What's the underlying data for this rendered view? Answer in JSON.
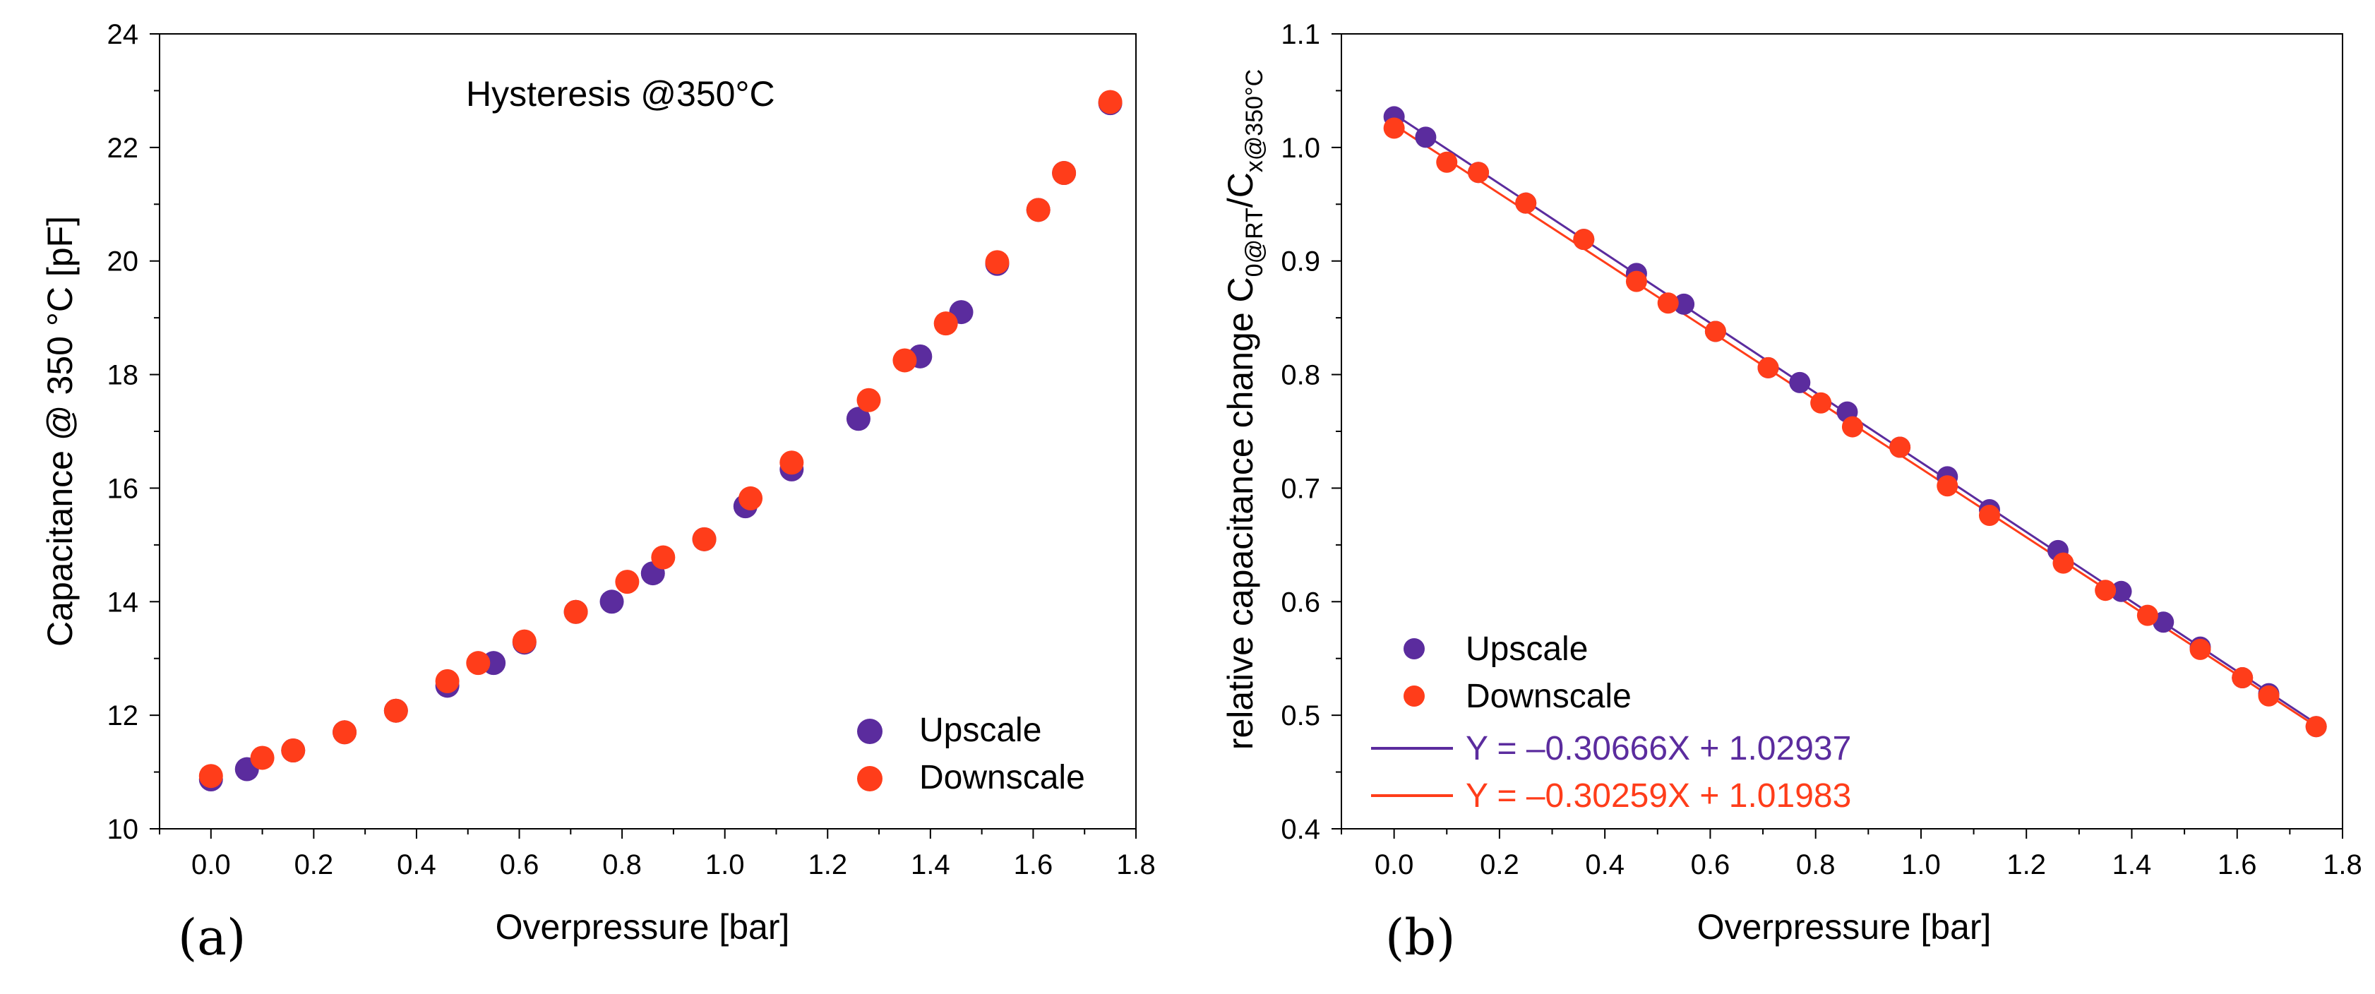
{
  "chart_data": [
    {
      "type": "scatter",
      "panel_label": "(a)",
      "title": "Hysteresis @350°C",
      "xlabel": "Overpressure [bar]",
      "ylabel": "Capacitance @ 350 °C [pF]",
      "xlim": [
        -0.1,
        1.8
      ],
      "ylim": [
        10,
        24
      ],
      "xticks": [
        "0.0",
        "0.2",
        "0.4",
        "0.6",
        "0.8",
        "1.0",
        "1.2",
        "1.4",
        "1.6",
        "1.8"
      ],
      "yticks": [
        "10",
        "12",
        "14",
        "16",
        "18",
        "20",
        "22",
        "24"
      ],
      "legend_position": "bottom-right",
      "series": [
        {
          "name": "Upscale",
          "color": "#5B2C9E",
          "x": [
            0.0,
            0.07,
            0.16,
            0.26,
            0.36,
            0.46,
            0.55,
            0.61,
            0.71,
            0.78,
            0.86,
            0.96,
            1.04,
            1.13,
            1.26,
            1.38,
            1.46,
            1.53,
            1.61,
            1.66,
            1.75
          ],
          "y": [
            10.87,
            11.05,
            11.38,
            11.7,
            12.08,
            12.52,
            12.92,
            13.28,
            13.82,
            14.0,
            14.5,
            15.1,
            15.68,
            16.33,
            17.22,
            18.32,
            19.1,
            19.95,
            20.9,
            21.55,
            22.78
          ]
        },
        {
          "name": "Downscale",
          "color": "#FF3D1A",
          "x": [
            0.0,
            0.1,
            0.16,
            0.26,
            0.36,
            0.46,
            0.52,
            0.61,
            0.71,
            0.81,
            0.88,
            0.96,
            1.05,
            1.13,
            1.28,
            1.35,
            1.43,
            1.53,
            1.61,
            1.66,
            1.75
          ],
          "y": [
            10.93,
            11.25,
            11.38,
            11.7,
            12.08,
            12.6,
            12.92,
            13.3,
            13.82,
            14.35,
            14.78,
            15.1,
            15.82,
            16.45,
            17.55,
            18.25,
            18.9,
            19.98,
            20.9,
            21.55,
            22.8
          ]
        }
      ]
    },
    {
      "type": "scatter",
      "panel_label": "(b)",
      "xlabel": "Overpressure [bar]",
      "ylabel": "relative capacitance change C",
      "ylabel_sub1": "0@RT",
      "ylabel_mid": "/C",
      "ylabel_sub2": "x@350°C",
      "xlim": [
        -0.1,
        1.8
      ],
      "ylim": [
        0.4,
        1.1
      ],
      "xticks": [
        "0.0",
        "0.2",
        "0.4",
        "0.6",
        "0.8",
        "1.0",
        "1.2",
        "1.4",
        "1.6",
        "1.8"
      ],
      "yticks": [
        "0.4",
        "0.5",
        "0.6",
        "0.7",
        "0.8",
        "0.9",
        "1.0",
        "1.1"
      ],
      "legend_position": "bottom-left",
      "series": [
        {
          "name": "Upscale",
          "color": "#5B2C9E",
          "x": [
            0.0,
            0.06,
            0.16,
            0.25,
            0.36,
            0.46,
            0.55,
            0.61,
            0.71,
            0.77,
            0.86,
            0.96,
            1.05,
            1.13,
            1.26,
            1.38,
            1.46,
            1.53,
            1.61,
            1.66,
            1.75
          ],
          "y": [
            1.027,
            1.009,
            0.978,
            0.951,
            0.919,
            0.889,
            0.862,
            0.838,
            0.806,
            0.793,
            0.767,
            0.736,
            0.71,
            0.681,
            0.645,
            0.609,
            0.582,
            0.56,
            0.533,
            0.519,
            0.49
          ]
        },
        {
          "name": "Downscale",
          "color": "#FF3D1A",
          "x": [
            0.0,
            0.1,
            0.16,
            0.25,
            0.36,
            0.46,
            0.52,
            0.61,
            0.71,
            0.81,
            0.87,
            0.96,
            1.05,
            1.13,
            1.27,
            1.35,
            1.43,
            1.53,
            1.61,
            1.66,
            1.75
          ],
          "y": [
            1.017,
            0.987,
            0.978,
            0.951,
            0.919,
            0.882,
            0.863,
            0.838,
            0.806,
            0.775,
            0.754,
            0.736,
            0.702,
            0.676,
            0.634,
            0.61,
            0.588,
            0.558,
            0.533,
            0.517,
            0.49
          ]
        }
      ],
      "fits": [
        {
          "label": "Y = –0.30666X + 1.02937",
          "slope": -0.30666,
          "intercept": 1.02937,
          "color": "#5B2C9E"
        },
        {
          "label": "Y = –0.30259X + 1.01983",
          "slope": -0.30259,
          "intercept": 1.01983,
          "color": "#FF3D1A"
        }
      ]
    }
  ]
}
